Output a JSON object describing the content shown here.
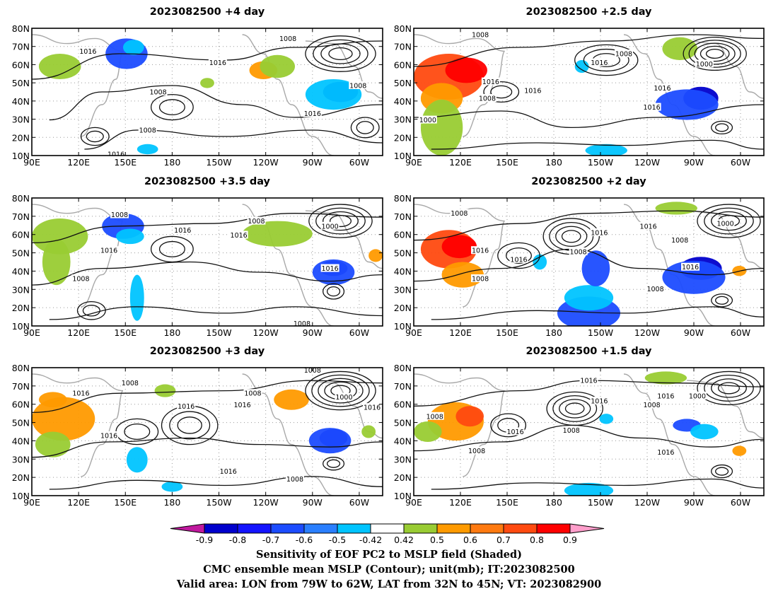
{
  "panels": [
    {
      "title": "2023082500  +4 day",
      "contour_labels": [
        "1008",
        "1016",
        "1016",
        "1008",
        "1016",
        "1008",
        "1008",
        "1016"
      ]
    },
    {
      "title": "2023082500  +2.5 day",
      "contour_labels": [
        "1008",
        "1008",
        "1016",
        "1016",
        "1008",
        "1016",
        "1000",
        "1000",
        "1016",
        "1016"
      ]
    },
    {
      "title": "2023082500  +3.5 day",
      "contour_labels": [
        "1008",
        "1016",
        "1016",
        "1008",
        "1016",
        "1008",
        "1000",
        "1016",
        "1008"
      ]
    },
    {
      "title": "2023082500  +2 day",
      "contour_labels": [
        "1008",
        "1016",
        "1016",
        "1008",
        "1016",
        "1008",
        "1016",
        "1000",
        "1008",
        "1016",
        "1008"
      ]
    },
    {
      "title": "2023082500  +3 day",
      "contour_labels": [
        "1008",
        "1016",
        "1016",
        "1008",
        "1016",
        "1016",
        "1008",
        "1016",
        "1000",
        "1016",
        "1008"
      ]
    },
    {
      "title": "2023082500  +1.5 day",
      "contour_labels": [
        "1008",
        "1016",
        "1016",
        "1008",
        "1016",
        "1008",
        "1016",
        "1000",
        "1008",
        "1016"
      ]
    }
  ],
  "axes": {
    "lat_labels": [
      "80N",
      "70N",
      "60N",
      "50N",
      "40N",
      "30N",
      "20N",
      "10N"
    ],
    "lon_labels": [
      "90E",
      "120E",
      "150E",
      "180",
      "150W",
      "120W",
      "90W",
      "60W"
    ]
  },
  "colorbar": {
    "tick_labels": [
      "-0.9",
      "-0.8",
      "-0.7",
      "-0.6",
      "-0.5",
      "-0.42",
      "0.42",
      "0.5",
      "0.6",
      "0.7",
      "0.8",
      "0.9"
    ],
    "colors": {
      "lower_extend": "#c0199e",
      "boxes": [
        "#0000cc",
        "#1414ff",
        "#1c4cff",
        "#2a7fff",
        "#00c4ff",
        "#ffffff",
        "#99cc33",
        "#ff9a00",
        "#ff7a10",
        "#ff4a10",
        "#ff0000"
      ],
      "upper_extend": "#ff9ecb"
    }
  },
  "captions": [
    "Sensitivity of EOF PC2 to MSLP field (Shaded)",
    "CMC ensemble mean MSLP (Contour); unit(mb); IT:2023082500",
    "Valid area: LON from 79W to 62W, LAT from 32N to 45N; VT: 2023082900"
  ]
}
